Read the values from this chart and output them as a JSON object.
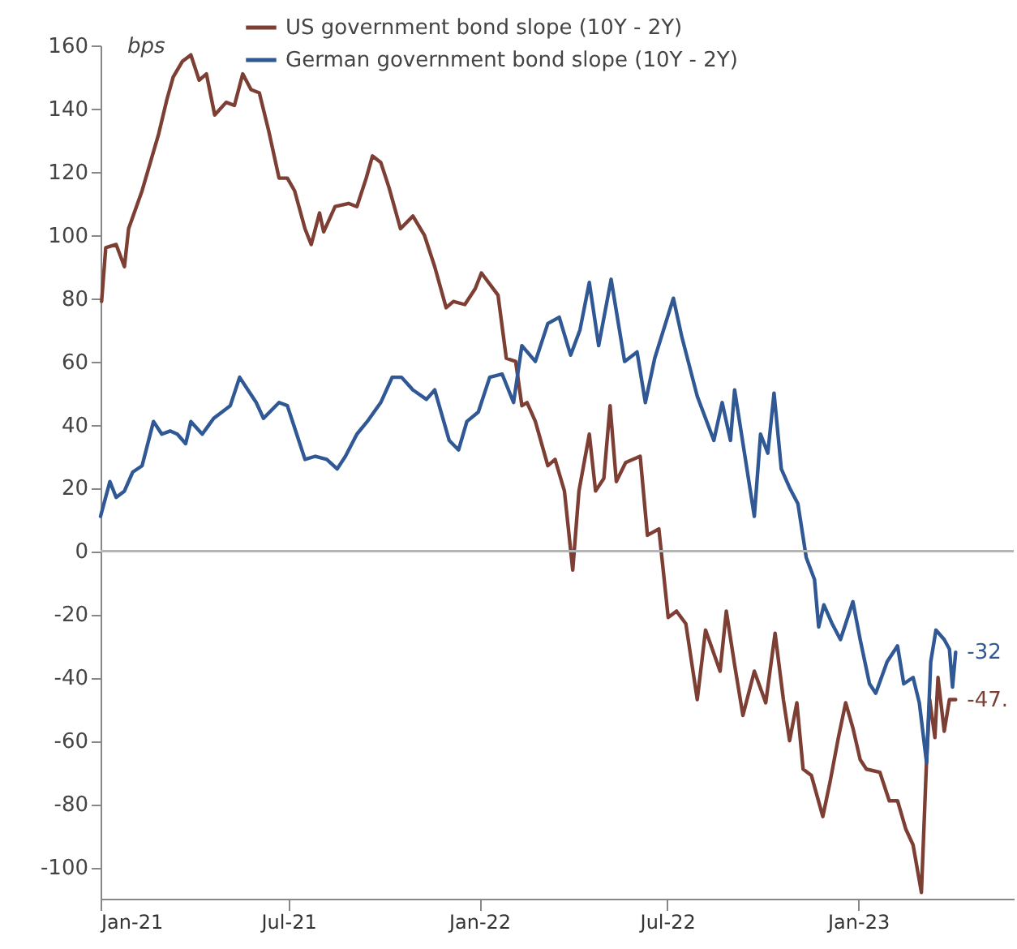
{
  "chart_data": {
    "type": "line",
    "ylabel": "bps",
    "legend": "top",
    "x": [
      "2021-01-02",
      "2021-01-06",
      "2021-01-16",
      "2021-01-24",
      "2021-01-28",
      "2021-02-10",
      "2021-02-18",
      "2021-02-26",
      "2021-03-06",
      "2021-03-12",
      "2021-03-21",
      "2021-03-29",
      "2021-04-06",
      "2021-04-13",
      "2021-04-21",
      "2021-05-02",
      "2021-05-10",
      "2021-05-18",
      "2021-05-26",
      "2021-06-03",
      "2021-06-12",
      "2021-06-22",
      "2021-06-30",
      "2021-07-07",
      "2021-07-17",
      "2021-07-23",
      "2021-07-31",
      "2021-08-04",
      "2021-08-15",
      "2021-08-28",
      "2021-09-05",
      "2021-09-14",
      "2021-09-20",
      "2021-09-28",
      "2021-10-06",
      "2021-10-17",
      "2021-10-29",
      "2021-11-09",
      "2021-11-19",
      "2021-11-30",
      "2021-12-07",
      "2021-12-18",
      "2021-12-28",
      "2022-01-03",
      "2022-01-19",
      "2022-01-27",
      "2022-02-05",
      "2022-02-11",
      "2022-02-16",
      "2022-02-24",
      "2022-03-08",
      "2022-03-15",
      "2022-03-24",
      "2022-04-01",
      "2022-04-07",
      "2022-04-17",
      "2022-04-23",
      "2022-05-01",
      "2022-05-07",
      "2022-05-13",
      "2022-05-22",
      "2022-06-05",
      "2022-06-12",
      "2022-06-23",
      "2022-07-02",
      "2022-07-10",
      "2022-07-19",
      "2022-07-30",
      "2022-08-07",
      "2022-08-21",
      "2022-08-27",
      "2022-09-04",
      "2022-09-12",
      "2022-09-23",
      "2022-10-04",
      "2022-10-13",
      "2022-10-21",
      "2022-10-27",
      "2022-11-03",
      "2022-11-09",
      "2022-11-17",
      "2022-11-28",
      "2022-12-05",
      "2022-12-13",
      "2022-12-20",
      "2022-12-27",
      "2023-01-03",
      "2023-01-09",
      "2023-01-22",
      "2023-01-31",
      "2023-02-08",
      "2023-02-16",
      "2023-02-23",
      "2023-03-03",
      "2023-03-08",
      "2023-03-11",
      "2023-03-16",
      "2023-03-19",
      "2023-03-25",
      "2023-03-30",
      "2023-04-05"
    ],
    "series": [
      {
        "name": "US government bond slope (10Y - 2Y)",
        "color": "#7d3e34",
        "values": [
          79,
          96,
          97,
          90,
          102,
          114,
          123,
          132,
          143,
          150,
          155,
          157,
          149,
          151,
          138,
          142,
          141,
          151,
          146,
          145,
          133,
          118,
          118,
          114,
          102,
          97,
          107,
          101,
          109,
          110,
          109,
          118,
          125,
          123,
          115,
          102,
          106,
          100,
          90,
          77,
          79,
          78,
          83,
          88,
          81,
          61,
          60,
          46,
          47,
          41,
          27,
          29,
          19,
          -6,
          19,
          37,
          19,
          23,
          46,
          22,
          28,
          30,
          5,
          7,
          -21,
          -19,
          -23,
          -47,
          -25,
          -38,
          -19,
          -36,
          -52,
          -38,
          -48,
          -26,
          -47,
          -60,
          -48,
          -69,
          -71,
          -84,
          -73,
          -59,
          -48,
          -56,
          -66,
          -69,
          -70,
          -79,
          -79,
          -88,
          -93,
          -108,
          -66,
          -47,
          -59,
          -40,
          -57,
          -47,
          -47
        ]
      },
      {
        "name": "German government bond slope (10Y - 2Y)",
        "color": "#2f5895",
        "x": [
          "2021-01-01",
          "2021-01-10",
          "2021-01-16",
          "2021-01-24",
          "2021-02-01",
          "2021-02-10",
          "2021-02-21",
          "2021-03-01",
          "2021-03-09",
          "2021-03-16",
          "2021-03-24",
          "2021-03-29",
          "2021-04-09",
          "2021-04-20",
          "2021-04-28",
          "2021-05-06",
          "2021-05-15",
          "2021-05-23",
          "2021-05-31",
          "2021-06-07",
          "2021-06-22",
          "2021-06-30",
          "2021-07-09",
          "2021-07-17",
          "2021-07-27",
          "2021-08-07",
          "2021-08-17",
          "2021-08-25",
          "2021-09-05",
          "2021-09-15",
          "2021-09-28",
          "2021-10-09",
          "2021-10-18",
          "2021-10-29",
          "2021-11-11",
          "2021-11-19",
          "2021-12-03",
          "2021-12-12",
          "2021-12-20",
          "2021-12-31",
          "2022-01-11",
          "2022-01-23",
          "2022-02-03",
          "2022-02-11",
          "2022-02-24",
          "2022-03-08",
          "2022-03-19",
          "2022-03-30",
          "2022-04-08",
          "2022-04-17",
          "2022-04-26",
          "2022-05-08",
          "2022-05-21",
          "2022-06-02",
          "2022-06-10",
          "2022-06-19",
          "2022-07-07",
          "2022-07-15",
          "2022-07-30",
          "2022-08-15",
          "2022-08-23",
          "2022-08-31",
          "2022-09-04",
          "2022-09-23",
          "2022-09-29",
          "2022-10-06",
          "2022-10-12",
          "2022-10-19",
          "2022-10-27",
          "2022-11-04",
          "2022-11-12",
          "2022-11-20",
          "2022-11-24",
          "2022-11-29",
          "2022-12-07",
          "2022-12-15",
          "2022-12-27",
          "2023-01-03",
          "2023-01-12",
          "2023-01-18",
          "2023-01-29",
          "2023-02-08",
          "2023-02-14",
          "2023-02-23",
          "2023-03-01",
          "2023-03-08",
          "2023-03-12",
          "2023-03-17",
          "2023-03-25",
          "2023-03-30",
          "2023-04-02",
          "2023-04-05"
        ],
        "values": [
          11,
          22,
          17,
          19,
          25,
          27,
          41,
          37,
          38,
          37,
          34,
          41,
          37,
          42,
          44,
          46,
          55,
          51,
          47,
          42,
          47,
          46,
          37,
          29,
          30,
          29,
          26,
          30,
          37,
          41,
          47,
          55,
          55,
          51,
          48,
          51,
          35,
          32,
          41,
          44,
          55,
          56,
          47,
          65,
          60,
          72,
          74,
          62,
          70,
          85,
          65,
          86,
          60,
          63,
          47,
          61,
          80,
          68,
          49,
          35,
          47,
          35,
          51,
          11,
          37,
          31,
          50,
          26,
          20,
          15,
          -2,
          -9,
          -24,
          -17,
          -23,
          -28,
          -16,
          -28,
          -42,
          -45,
          -35,
          -30,
          -42,
          -40,
          -48,
          -67,
          -35,
          -25,
          -28,
          -31,
          -43,
          -32
        ]
      }
    ],
    "annotations": [
      {
        "text": "-47.",
        "x": "2023-04-05",
        "y": -47
      },
      {
        "text": "-32",
        "x": "2023-04-05",
        "y": -32
      }
    ],
    "ref_lines": [
      {
        "axis": "y",
        "value": 0,
        "color": "#b4b4b4"
      }
    ],
    "xlim": [
      "2021-01-01",
      "2023-05-31"
    ],
    "xticks": [
      {
        "value": "2021-01-01",
        "label": "Jan-21"
      },
      {
        "value": "2021-07-01",
        "label": "Jul-21"
      },
      {
        "value": "2022-01-01",
        "label": "Jan-22"
      },
      {
        "value": "2022-07-01",
        "label": "Jul-22"
      },
      {
        "value": "2023-01-01",
        "label": "Jan-23"
      }
    ],
    "ylim": [
      -110,
      160
    ],
    "yticks": [
      -100,
      -80,
      -60,
      -40,
      -20,
      0,
      20,
      40,
      60,
      80,
      100,
      120,
      140,
      160
    ],
    "grid": false,
    "marker": "none",
    "line_style": "solid"
  }
}
